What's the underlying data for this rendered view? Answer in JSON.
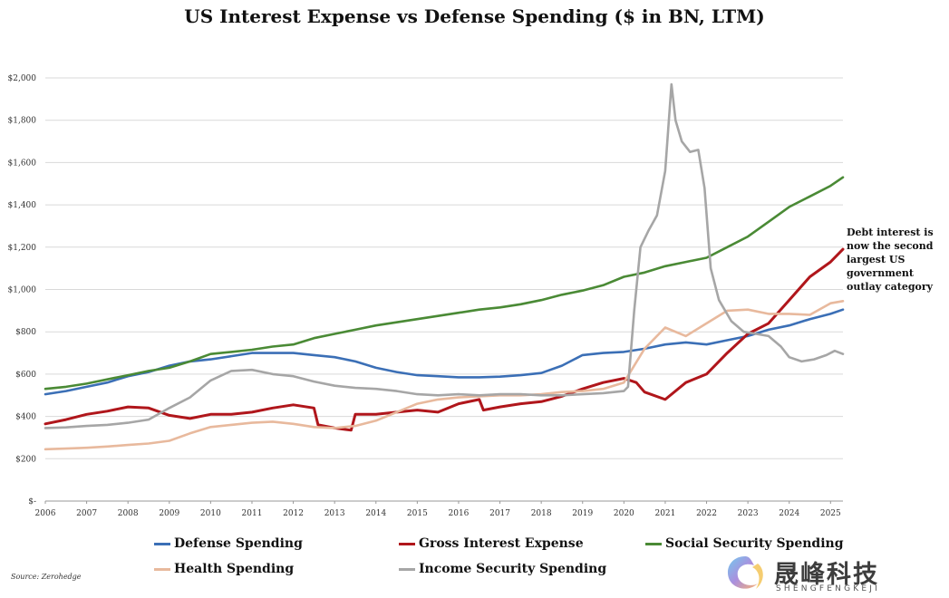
{
  "chart_data": {
    "type": "line",
    "title": "US Interest Expense vs Defense Spending ($ in BN, LTM)",
    "xlabel": "",
    "ylabel": "",
    "xlim": [
      2006,
      2025.3
    ],
    "ylim": [
      0,
      2000
    ],
    "y_ticks": [
      0,
      200,
      400,
      600,
      800,
      1000,
      1200,
      1400,
      1600,
      1800,
      2000
    ],
    "y_tick_labels": [
      "$-",
      "$200",
      "$400",
      "$600",
      "$800",
      "$1,000",
      "$1,200",
      "$1,400",
      "$1,600",
      "$1,800",
      "$2,000"
    ],
    "x_ticks": [
      2006,
      2007,
      2008,
      2009,
      2010,
      2011,
      2012,
      2013,
      2014,
      2015,
      2016,
      2017,
      2018,
      2019,
      2020,
      2021,
      2022,
      2023,
      2024,
      2025
    ],
    "x_tick_labels": [
      "2006",
      "2007",
      "2008",
      "2009",
      "2010",
      "2011",
      "2012",
      "2013",
      "2014",
      "2015",
      "2016",
      "2017",
      "2018",
      "2019",
      "2020",
      "2021",
      "2022",
      "2023",
      "2024",
      "2025"
    ],
    "grid": true,
    "legend_position": "bottom",
    "annotation": "Debt interest is now the second largest US government outlay category",
    "source": "Source: Zerohedge",
    "series": [
      {
        "name": "Defense Spending",
        "color": "#3b6fb6",
        "x": [
          2006,
          2006.5,
          2007,
          2007.5,
          2008,
          2008.5,
          2009,
          2009.5,
          2010,
          2010.5,
          2011,
          2011.5,
          2012,
          2012.5,
          2013,
          2013.5,
          2014,
          2014.5,
          2015,
          2015.5,
          2016,
          2016.5,
          2017,
          2017.5,
          2018,
          2018.5,
          2019,
          2019.5,
          2020,
          2020.5,
          2021,
          2021.5,
          2022,
          2022.5,
          2023,
          2023.5,
          2024,
          2024.5,
          2025,
          2025.3
        ],
        "values": [
          505,
          520,
          540,
          560,
          590,
          610,
          640,
          660,
          670,
          685,
          700,
          700,
          700,
          690,
          680,
          660,
          630,
          610,
          595,
          590,
          585,
          585,
          588,
          595,
          605,
          640,
          690,
          700,
          705,
          720,
          740,
          750,
          740,
          760,
          780,
          810,
          830,
          860,
          885,
          905
        ]
      },
      {
        "name": "Gross Interest Expense",
        "color": "#b0161b",
        "x": [
          2006,
          2006.5,
          2007,
          2007.5,
          2008,
          2008.5,
          2009,
          2009.5,
          2010,
          2010.5,
          2011,
          2011.5,
          2012,
          2012.5,
          2012.6,
          2013,
          2013.4,
          2013.5,
          2014,
          2014.5,
          2015,
          2015.5,
          2016,
          2016.5,
          2016.6,
          2017,
          2017.5,
          2018,
          2018.5,
          2019,
          2019.5,
          2020,
          2020.3,
          2020.5,
          2021,
          2021.5,
          2022,
          2022.5,
          2023,
          2023.5,
          2024,
          2024.5,
          2025,
          2025.3
        ],
        "values": [
          365,
          385,
          410,
          425,
          445,
          440,
          405,
          390,
          410,
          410,
          420,
          440,
          455,
          440,
          360,
          345,
          335,
          410,
          410,
          420,
          430,
          420,
          460,
          480,
          430,
          445,
          460,
          470,
          495,
          530,
          560,
          580,
          560,
          515,
          480,
          560,
          600,
          700,
          790,
          840,
          950,
          1060,
          1130,
          1190
        ]
      },
      {
        "name": "Social Security Spending",
        "color": "#4a8a35",
        "x": [
          2006,
          2006.5,
          2007,
          2007.5,
          2008,
          2008.5,
          2009,
          2009.5,
          2010,
          2010.5,
          2011,
          2011.5,
          2012,
          2012.5,
          2013,
          2013.5,
          2014,
          2014.5,
          2015,
          2015.5,
          2016,
          2016.5,
          2017,
          2017.5,
          2018,
          2018.5,
          2019,
          2019.5,
          2020,
          2020.5,
          2021,
          2021.5,
          2022,
          2022.5,
          2023,
          2023.5,
          2024,
          2024.5,
          2025,
          2025.3
        ],
        "values": [
          530,
          540,
          555,
          575,
          595,
          615,
          630,
          660,
          695,
          705,
          715,
          730,
          740,
          770,
          790,
          810,
          830,
          845,
          860,
          875,
          890,
          905,
          915,
          930,
          950,
          975,
          995,
          1020,
          1060,
          1080,
          1110,
          1130,
          1150,
          1200,
          1250,
          1320,
          1390,
          1440,
          1490,
          1530
        ]
      },
      {
        "name": "Health Spending",
        "color": "#e8b99d",
        "x": [
          2006,
          2006.5,
          2007,
          2007.5,
          2008,
          2008.5,
          2009,
          2009.5,
          2010,
          2010.5,
          2011,
          2011.5,
          2012,
          2012.5,
          2013,
          2013.5,
          2014,
          2014.5,
          2015,
          2015.5,
          2016,
          2016.5,
          2017,
          2017.5,
          2018,
          2018.5,
          2019,
          2019.5,
          2020,
          2020.5,
          2021,
          2021.5,
          2022,
          2022.5,
          2023,
          2023.5,
          2024,
          2024.5,
          2025,
          2025.3
        ],
        "values": [
          245,
          248,
          252,
          258,
          265,
          272,
          285,
          320,
          350,
          360,
          370,
          375,
          365,
          350,
          345,
          355,
          380,
          420,
          460,
          480,
          490,
          495,
          500,
          500,
          505,
          515,
          520,
          530,
          560,
          720,
          820,
          780,
          840,
          900,
          905,
          885,
          885,
          880,
          935,
          945
        ]
      },
      {
        "name": "Income Security Spending",
        "color": "#a6a6a6",
        "x": [
          2006,
          2006.5,
          2007,
          2007.5,
          2008,
          2008.5,
          2009,
          2009.5,
          2010,
          2010.5,
          2011,
          2011.5,
          2012,
          2012.5,
          2013,
          2013.5,
          2014,
          2014.5,
          2015,
          2015.5,
          2016,
          2016.5,
          2017,
          2017.5,
          2018,
          2018.5,
          2019,
          2019.5,
          2020,
          2020.1,
          2020.25,
          2020.4,
          2020.6,
          2020.8,
          2021,
          2021.15,
          2021.25,
          2021.4,
          2021.6,
          2021.8,
          2021.95,
          2022.1,
          2022.3,
          2022.6,
          2022.9,
          2023.2,
          2023.5,
          2023.8,
          2024,
          2024.3,
          2024.6,
          2024.9,
          2025.1,
          2025.3
        ],
        "values": [
          345,
          348,
          355,
          360,
          370,
          385,
          440,
          490,
          570,
          615,
          620,
          600,
          590,
          565,
          545,
          535,
          530,
          520,
          505,
          500,
          505,
          500,
          505,
          505,
          500,
          500,
          505,
          510,
          520,
          540,
          900,
          1200,
          1280,
          1350,
          1560,
          1970,
          1800,
          1700,
          1650,
          1660,
          1480,
          1100,
          950,
          850,
          800,
          790,
          780,
          730,
          680,
          660,
          670,
          690,
          710,
          695
        ]
      }
    ]
  }
}
